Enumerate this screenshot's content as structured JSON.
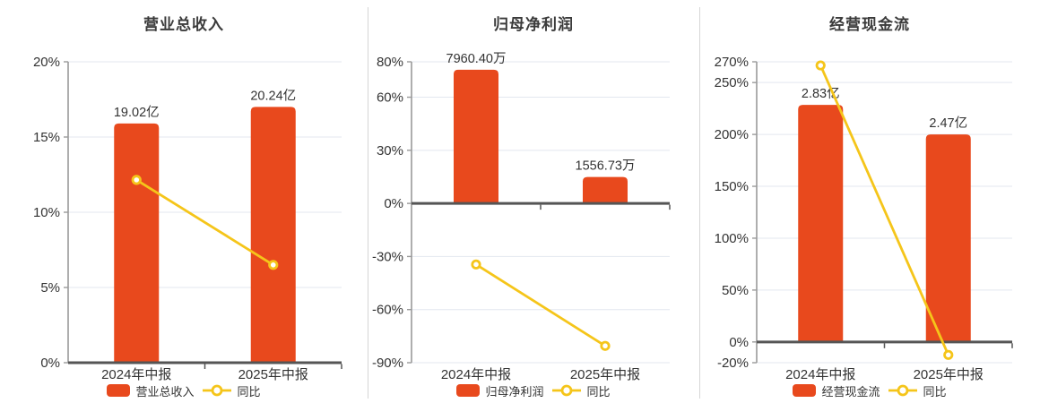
{
  "colors": {
    "bar": "#e8491d",
    "line": "#f5c51a",
    "grid": "#e3e7ef",
    "axis": "#9a9a9a",
    "zero_axis": "#555555",
    "text": "#333333",
    "title": "#3b3b3b",
    "divider": "#d6d6d6",
    "background": "#ffffff"
  },
  "chart_data": [
    {
      "type": "bar-line",
      "title": "营业总收入",
      "categories": [
        "2024年中报",
        "2025年中报"
      ],
      "bar_series": {
        "name": "营业总收入",
        "unit": "亿",
        "values": [
          19.02,
          20.24
        ],
        "value_labels": [
          "19.02亿",
          "20.24亿"
        ],
        "display_on_pct_axis": [
          15.9,
          17.0
        ]
      },
      "line_series": {
        "name": "同比",
        "values_pct": [
          12.15,
          6.5
        ]
      },
      "yaxis": {
        "min": 0,
        "max": 20,
        "ticks": [
          20,
          15,
          10,
          5,
          0
        ],
        "suffix": "%"
      },
      "grid": true,
      "legend_position": "bottom"
    },
    {
      "type": "bar-line",
      "title": "归母净利润",
      "categories": [
        "2024年中报",
        "2025年中报"
      ],
      "bar_series": {
        "name": "归母净利润",
        "unit": "万",
        "values": [
          7960.4,
          1556.73
        ],
        "value_labels": [
          "7960.40万",
          "1556.73万"
        ],
        "display_on_pct_axis": [
          75.5,
          14.9
        ]
      },
      "line_series": {
        "name": "同比",
        "values_pct": [
          -34.5,
          -80.5
        ]
      },
      "yaxis": {
        "min": -90,
        "max": 80,
        "ticks": [
          80,
          60,
          30,
          0,
          -30,
          -60,
          -90
        ],
        "suffix": "%"
      },
      "grid": true,
      "legend_position": "bottom"
    },
    {
      "type": "bar-line",
      "title": "经营现金流",
      "categories": [
        "2024年中报",
        "2025年中报"
      ],
      "bar_series": {
        "name": "经营现金流",
        "unit": "亿",
        "values": [
          2.83,
          2.47
        ],
        "value_labels": [
          "2.83亿",
          "2.47亿"
        ],
        "display_on_pct_axis": [
          228.5,
          200.0
        ]
      },
      "line_series": {
        "name": "同比",
        "values_pct": [
          266.5,
          -12.5
        ]
      },
      "yaxis": {
        "min": -20,
        "max": 270,
        "ticks": [
          270,
          250,
          200,
          150,
          100,
          50,
          0,
          -20
        ],
        "suffix": "%"
      },
      "grid": true,
      "legend_position": "bottom"
    }
  ]
}
